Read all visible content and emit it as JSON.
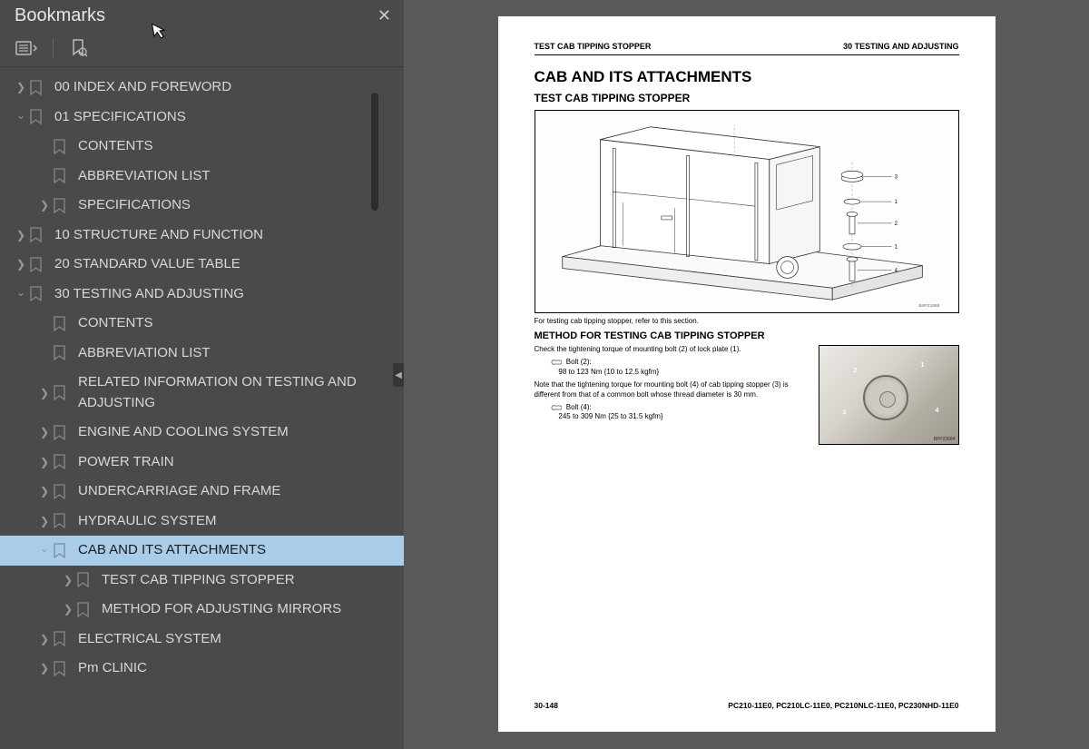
{
  "sidebar": {
    "title": "Bookmarks",
    "items": [
      {
        "indent": 0,
        "chev": "right",
        "label": "00 INDEX AND FOREWORD",
        "selected": false
      },
      {
        "indent": 0,
        "chev": "down",
        "label": "01 SPECIFICATIONS",
        "selected": false
      },
      {
        "indent": 1,
        "chev": "blank",
        "label": "CONTENTS",
        "selected": false
      },
      {
        "indent": 1,
        "chev": "blank",
        "label": "ABBREVIATION LIST",
        "selected": false
      },
      {
        "indent": 1,
        "chev": "right",
        "label": "SPECIFICATIONS",
        "selected": false
      },
      {
        "indent": 0,
        "chev": "right",
        "label": "10 STRUCTURE AND FUNCTION",
        "selected": false
      },
      {
        "indent": 0,
        "chev": "right",
        "label": "20 STANDARD VALUE TABLE",
        "selected": false
      },
      {
        "indent": 0,
        "chev": "down",
        "label": "30 TESTING AND ADJUSTING",
        "selected": false
      },
      {
        "indent": 1,
        "chev": "blank",
        "label": "CONTENTS",
        "selected": false
      },
      {
        "indent": 1,
        "chev": "blank",
        "label": "ABBREVIATION LIST",
        "selected": false
      },
      {
        "indent": 1,
        "chev": "right",
        "label": "RELATED INFORMATION ON TESTING AND ADJUSTING",
        "selected": false
      },
      {
        "indent": 1,
        "chev": "right",
        "label": "ENGINE AND COOLING SYSTEM",
        "selected": false
      },
      {
        "indent": 1,
        "chev": "right",
        "label": "POWER TRAIN",
        "selected": false
      },
      {
        "indent": 1,
        "chev": "right",
        "label": "UNDERCARRIAGE AND FRAME",
        "selected": false
      },
      {
        "indent": 1,
        "chev": "right",
        "label": "HYDRAULIC SYSTEM",
        "selected": false
      },
      {
        "indent": 1,
        "chev": "down",
        "label": "CAB AND ITS ATTACHMENTS",
        "selected": true
      },
      {
        "indent": 2,
        "chev": "right",
        "label": "TEST CAB TIPPING STOPPER",
        "selected": false
      },
      {
        "indent": 2,
        "chev": "right",
        "label": "METHOD FOR ADJUSTING MIRRORS",
        "selected": false
      },
      {
        "indent": 1,
        "chev": "right",
        "label": "ELECTRICAL SYSTEM",
        "selected": false
      },
      {
        "indent": 1,
        "chev": "right",
        "label": "Pm CLINIC",
        "selected": false
      }
    ]
  },
  "page": {
    "header_left": "TEST CAB TIPPING STOPPER",
    "header_right": "30 TESTING AND ADJUSTING",
    "h1": "CAB AND ITS ATTACHMENTS",
    "h2": "TEST CAB TIPPING STOPPER",
    "diagram_code": "B4P21955",
    "caption": "For testing cab tipping stopper, refer to this section.",
    "h3": "METHOD FOR TESTING CAB TIPPING STOPPER",
    "para1": "Check the tightening torque of mounting bolt (2) of lock plate (1).",
    "spec1_label": "Bolt (2):",
    "spec1_value": "98 to 123 Nm {10 to 12.5 kgfm}",
    "para2": "Note that the tightening torque for mounting bolt (4) of cab tipping stopper (3) is different from that of a common bolt whose thread diameter is 30 mm.",
    "spec2_label": "Bolt (4):",
    "spec2_value": "245 to 309 Nm {25 to 31.5 kgfm}",
    "photo_code": "BPP23684",
    "footer_left": "30-148",
    "footer_right": "PC210-11E0, PC210LC-11E0, PC210NLC-11E0, PC230NHD-11E0"
  }
}
